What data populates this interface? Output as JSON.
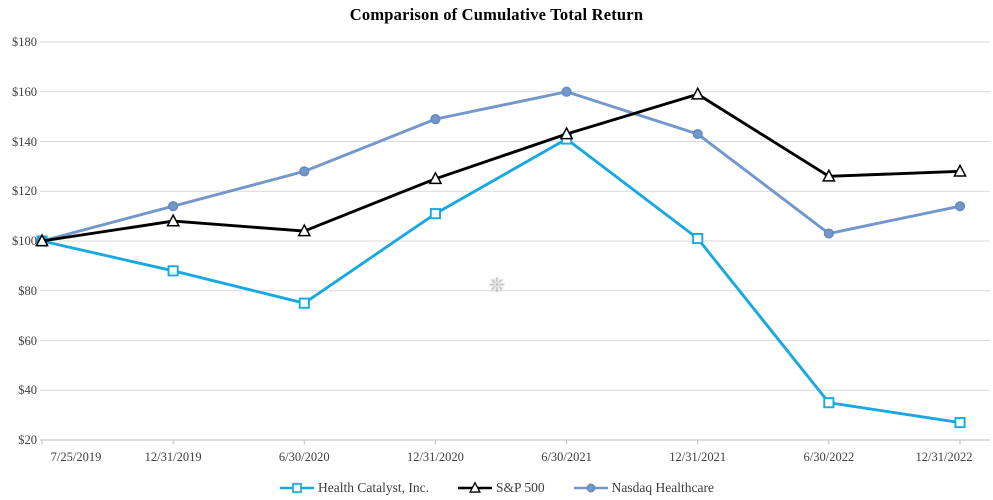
{
  "chart_data": {
    "type": "line",
    "title": "Comparison of Cumulative Total Return",
    "categories": [
      "7/25/2019",
      "12/31/2019",
      "6/30/2020",
      "12/31/2020",
      "6/30/2021",
      "12/31/2021",
      "6/30/2022",
      "12/31/2022"
    ],
    "series": [
      {
        "name": "Health Catalyst, Inc.",
        "color": "#19A8DF",
        "marker": "square",
        "marker_fill": "#FFFFFF",
        "marker_stroke": "#19A8DF",
        "values": [
          100,
          88,
          75,
          111,
          141,
          101,
          35,
          27
        ]
      },
      {
        "name": "S&P 500",
        "color": "#000000",
        "marker": "triangle",
        "marker_fill": "#FFFFFF",
        "marker_stroke": "#000000",
        "values": [
          100,
          108,
          104,
          125,
          143,
          159,
          126,
          128
        ]
      },
      {
        "name": "Nasdaq Healthcare",
        "color": "#7397CA",
        "marker": "circle",
        "marker_fill": "#7397CA",
        "marker_stroke": "#6389BE",
        "values": [
          100,
          114,
          128,
          149,
          160,
          143,
          103,
          114
        ]
      }
    ],
    "ylim": [
      20,
      180
    ],
    "ytick_step": 20,
    "ytick_prefix": "$",
    "xlabel": "",
    "ylabel": "",
    "grid": "horizontal",
    "legend_position": "bottom",
    "axis_label_color": "#404040",
    "gridline_color": "#D9D9D9",
    "baseline_color": "#BDBDBD",
    "background": "#FFFFFF"
  },
  "watermark": {
    "glyph": "❊"
  }
}
